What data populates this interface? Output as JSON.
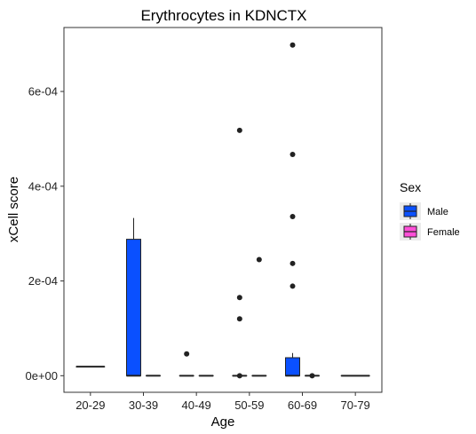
{
  "chart_data": {
    "type": "boxplot",
    "title": "Erythrocytes in KDNCTX",
    "xlabel": "Age",
    "ylabel": "xCell score",
    "categories": [
      "20-29",
      "30-39",
      "40-49",
      "50-59",
      "60-69",
      "70-79"
    ],
    "yticks": [
      0,
      0.0002,
      0.0004,
      0.0006
    ],
    "ytick_labels": [
      "0e+00",
      "2e-04",
      "4e-04",
      "6e-04"
    ],
    "ylim": [
      -3.5e-05,
      0.000735
    ],
    "grid": false,
    "legend": {
      "title": "Sex",
      "position": "right",
      "entries": [
        {
          "label": "Male",
          "color": "#0a50ff"
        },
        {
          "label": "Female",
          "color": "#ff4fd8"
        }
      ]
    },
    "series": [
      {
        "name": "Male",
        "color": "#0a50ff",
        "boxes": [
          null,
          {
            "category": "30-39",
            "min": 0,
            "q1": 0,
            "median": 0,
            "q3": 0.000288,
            "max": 0.000333,
            "outliers": []
          },
          {
            "category": "40-49",
            "min": 0,
            "q1": 0,
            "median": 0,
            "q3": 0,
            "max": 0,
            "outliers": [
              4.6e-05
            ]
          },
          {
            "category": "50-59",
            "min": 0,
            "q1": 0,
            "median": 0,
            "q3": 0,
            "max": 0,
            "outliers": [
              0.000518,
              0.000165,
              0.00012,
              0
            ]
          },
          {
            "category": "60-69",
            "min": 0,
            "q1": 0,
            "median": 0,
            "q3": 3.8e-05,
            "max": 4.8e-05,
            "outliers": [
              0.000698,
              0.000467,
              0.000336,
              0.000237,
              0.000189
            ]
          },
          {
            "category": "70-79",
            "min": 0,
            "q1": 0,
            "median": 0,
            "q3": 0,
            "max": 0,
            "outliers": []
          }
        ]
      },
      {
        "name": "Female",
        "color": "#ff4fd8",
        "boxes": [
          {
            "category": "20-29",
            "min": 1.9e-05,
            "q1": 1.9e-05,
            "median": 1.9e-05,
            "q3": 1.9e-05,
            "max": 1.9e-05,
            "outliers": []
          },
          {
            "category": "30-39",
            "min": 0,
            "q1": 0,
            "median": 0,
            "q3": 0,
            "max": 0,
            "outliers": []
          },
          {
            "category": "40-49",
            "min": 0,
            "q1": 0,
            "median": 0,
            "q3": 0,
            "max": 0,
            "outliers": []
          },
          {
            "category": "50-59",
            "min": 0,
            "q1": 0,
            "median": 0,
            "q3": 0,
            "max": 0,
            "outliers": [
              0.000245
            ]
          },
          {
            "category": "60-69",
            "min": 0,
            "q1": 0,
            "median": 0,
            "q3": 0,
            "max": 0,
            "outliers": [
              0
            ]
          },
          null
        ]
      }
    ]
  }
}
